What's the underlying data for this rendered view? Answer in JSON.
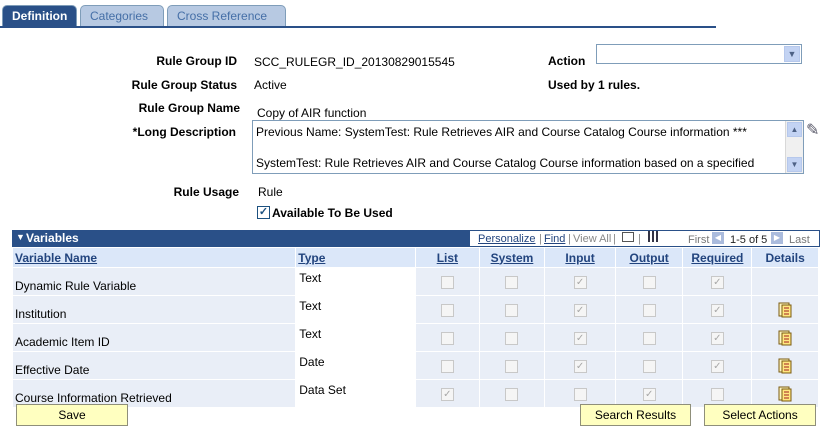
{
  "tabs": [
    {
      "label": "Definition"
    },
    {
      "label": "Categories"
    },
    {
      "label": "Cross Reference"
    }
  ],
  "form": {
    "rule_group_id_label": "Rule Group ID",
    "rule_group_id": "SCC_RULEGR_ID_20130829015545",
    "action_label": "Action",
    "action_value": "",
    "rule_group_status_label": "Rule Group Status",
    "rule_group_status": "Active",
    "used_by": "Used by 1 rules.",
    "rule_group_name_label": "Rule Group Name",
    "rule_group_name": "Copy of AIR function",
    "long_description_label": "*Long Description",
    "long_description_line1": "Previous Name: SystemTest: Rule Retrieves AIR and Course Catalog Course information  ***",
    "long_description_line2": "SystemTest: Rule Retrieves AIR and Course Catalog Course information based on a specified",
    "rule_usage_label": "Rule Usage",
    "rule_usage": "Rule",
    "available_label": "Available To Be Used",
    "available_checked": true
  },
  "variables": {
    "title": "Variables",
    "personalize": "Personalize",
    "find": "Find",
    "view_all": "View All",
    "first": "First",
    "range": "1-5 of 5",
    "last": "Last",
    "columns": [
      "Variable Name",
      "Type",
      "List",
      "System",
      "Input",
      "Output",
      "Required",
      "Details"
    ],
    "rows": [
      {
        "name": "Dynamic Rule Variable",
        "type": "Text",
        "list": false,
        "system": false,
        "input": true,
        "output": false,
        "required": true,
        "details": false
      },
      {
        "name": "Institution",
        "type": "Text",
        "list": false,
        "system": false,
        "input": true,
        "output": false,
        "required": true,
        "details": true
      },
      {
        "name": "Academic Item ID",
        "type": "Text",
        "list": false,
        "system": false,
        "input": true,
        "output": false,
        "required": true,
        "details": true
      },
      {
        "name": "Effective Date",
        "type": "Date",
        "list": false,
        "system": false,
        "input": true,
        "output": false,
        "required": true,
        "details": true
      },
      {
        "name": "Course Information Retrieved",
        "type": "Data Set",
        "list": true,
        "system": false,
        "input": false,
        "output": true,
        "required": false,
        "details": true
      }
    ]
  },
  "buttons": {
    "save": "Save",
    "search_results": "Search Results",
    "select_actions": "Select Actions"
  },
  "icons": {
    "collapse": "triangle-down-icon",
    "details": "document-detail-icon",
    "spell_check": "spell-check-pencil-icon"
  }
}
